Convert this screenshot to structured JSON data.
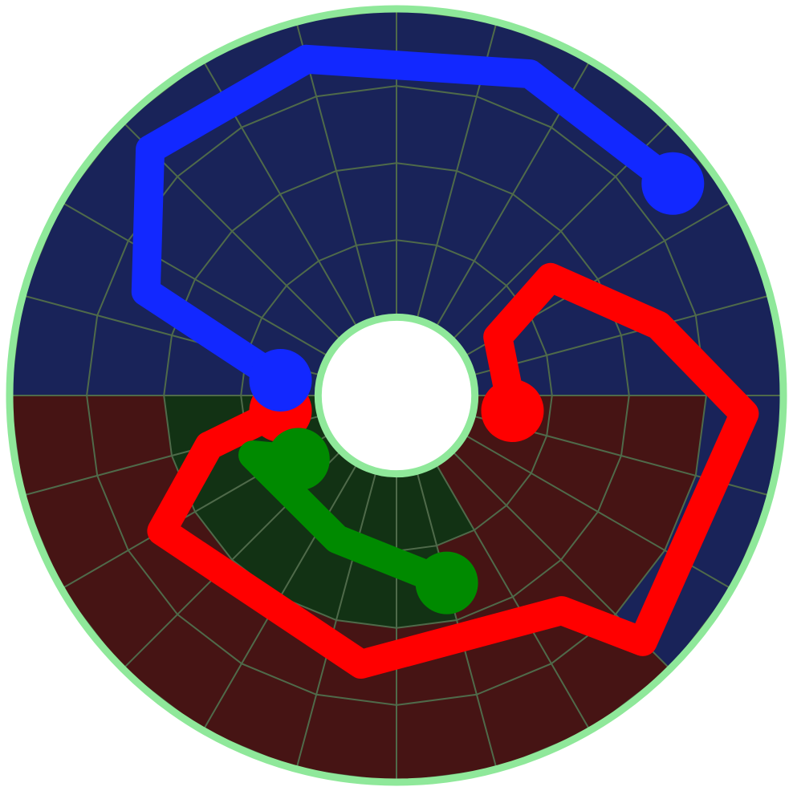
{
  "game": {
    "type": "circular-flow-puzzle",
    "rings": 4,
    "sectors": 24,
    "colors": {
      "board_border": "#8fe89a",
      "grid_line": "#4f6a4a",
      "center_fill": "#ffffff",
      "red_region": "#461414",
      "blue_region": "#192359",
      "green_region": "#123214",
      "red_pipe": "#ff0000",
      "blue_pipe": "#1228ff",
      "green_pipe": "#008a00"
    },
    "region_cells": [
      {
        "color": "blue",
        "ring_from": 0,
        "ring_to": 3,
        "sector_from": 12,
        "sector_to": 24
      },
      {
        "color": "blue",
        "ring_from": 3,
        "ring_to": 3,
        "sector_from": 0,
        "sector_to": 3
      },
      {
        "color": "red",
        "ring_from": 3,
        "ring_to": 3,
        "sector_from": 3,
        "sector_to": 12
      },
      {
        "color": "red",
        "ring_from": 2,
        "ring_to": 2,
        "sector_from": 0,
        "sector_to": 12
      },
      {
        "color": "red",
        "ring_from": 1,
        "ring_to": 1,
        "sector_from": 0,
        "sector_to": 12
      },
      {
        "color": "red",
        "ring_from": 0,
        "ring_to": 0,
        "sector_from": 0,
        "sector_to": 12
      },
      {
        "color": "green",
        "ring_from": 1,
        "ring_to": 1,
        "sector_from": 5,
        "sector_to": 12
      },
      {
        "color": "green",
        "ring_from": 0,
        "ring_to": 0,
        "sector_from": 4,
        "sector_to": 12
      }
    ],
    "flows": [
      {
        "color": "red",
        "endpoints": [
          [
            0.5,
            11.5
          ],
          [
            0.5,
            0.5
          ]
        ],
        "path": [
          [
            0.5,
            11.5
          ],
          [
            1.5,
            11.0
          ],
          [
            2.5,
            10.0
          ],
          [
            2.5,
            6.5
          ],
          [
            2.5,
            3.5
          ],
          [
            3.5,
            3.0
          ],
          [
            3.5,
            0.2
          ],
          [
            2.5,
            -1.0
          ],
          [
            1.5,
            -2.5
          ],
          [
            0.5,
            -2.0
          ],
          [
            0.5,
            0.5
          ]
        ]
      },
      {
        "color": "blue",
        "endpoints": [
          [
            0.5,
            12.5
          ],
          [
            3.5,
            21.5
          ]
        ],
        "path": [
          [
            0.5,
            12.5
          ],
          [
            2.5,
            13.5
          ],
          [
            3.5,
            15.0
          ],
          [
            3.5,
            17.0
          ],
          [
            3.5,
            19.5
          ],
          [
            3.5,
            21.5
          ]
        ]
      },
      {
        "color": "green",
        "endpoints": [
          [
            1.5,
            5.0
          ],
          [
            0.5,
            9.8
          ]
        ],
        "path": [
          [
            1.5,
            5.0
          ],
          [
            1.0,
            7.5
          ],
          [
            1.0,
            10.5
          ],
          [
            0.5,
            9.8
          ]
        ]
      }
    ]
  }
}
